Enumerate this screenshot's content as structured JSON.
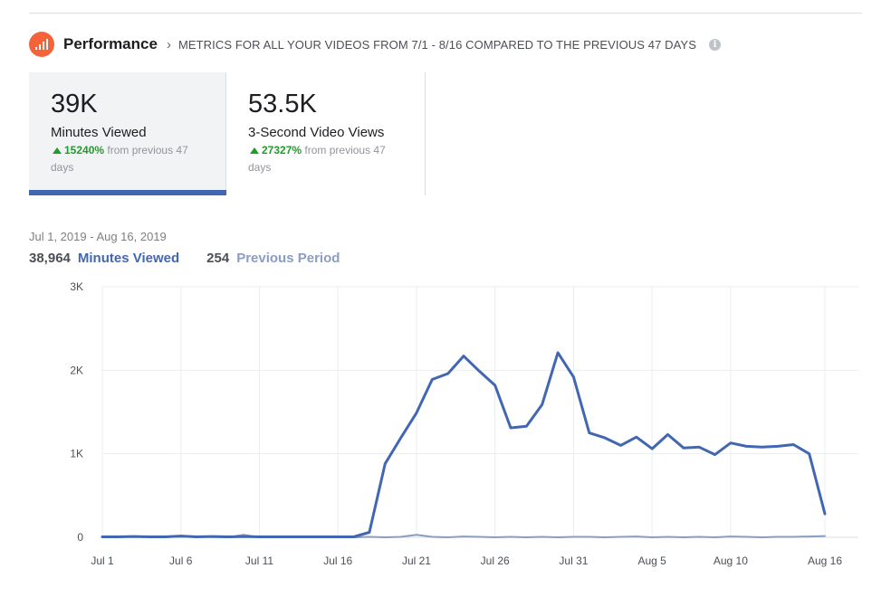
{
  "header": {
    "title": "Performance",
    "chevron": "›",
    "subtitle": "METRICS FOR ALL YOUR VIDEOS FROM 7/1 - 8/16 COMPARED TO THE PREVIOUS 47 DAYS",
    "icon": "bar-chart-icon",
    "info_icon": "info-icon",
    "info_glyph": "i"
  },
  "metrics": [
    {
      "value": "39K",
      "label": "Minutes Viewed",
      "change_pct": "15240%",
      "change_text": "from previous 47 days",
      "selected": true
    },
    {
      "value": "53.5K",
      "label": "3-Second Video Views",
      "change_pct": "27327%",
      "change_text": "from previous 47 days",
      "selected": false
    }
  ],
  "colors": {
    "accent": "#4267b2",
    "previous_series": "#8b9dc3",
    "positive": "#1e9e28",
    "icon_bg": "#f5633a"
  },
  "chart_data": {
    "type": "line",
    "date_range": "Jul 1, 2019 - Aug 16, 2019",
    "x": [
      "Jul 1",
      "Jul 2",
      "Jul 3",
      "Jul 4",
      "Jul 5",
      "Jul 6",
      "Jul 7",
      "Jul 8",
      "Jul 9",
      "Jul 10",
      "Jul 11",
      "Jul 12",
      "Jul 13",
      "Jul 14",
      "Jul 15",
      "Jul 16",
      "Jul 17",
      "Jul 18",
      "Jul 19",
      "Jul 20",
      "Jul 21",
      "Jul 22",
      "Jul 23",
      "Jul 24",
      "Jul 25",
      "Jul 26",
      "Jul 27",
      "Jul 28",
      "Jul 29",
      "Jul 30",
      "Jul 31",
      "Aug 1",
      "Aug 2",
      "Aug 3",
      "Aug 4",
      "Aug 5",
      "Aug 6",
      "Aug 7",
      "Aug 8",
      "Aug 9",
      "Aug 10",
      "Aug 11",
      "Aug 12",
      "Aug 13",
      "Aug 14",
      "Aug 15",
      "Aug 16"
    ],
    "x_ticks": [
      "Jul 1",
      "Jul 6",
      "Jul 11",
      "Jul 16",
      "Jul 21",
      "Jul 26",
      "Jul 31",
      "Aug 5",
      "Aug 10",
      "Aug 16"
    ],
    "y_ticks": [
      0,
      1000,
      2000,
      3000
    ],
    "y_tick_labels": [
      "0",
      "1K",
      "2K",
      "3K"
    ],
    "ylim": [
      0,
      3000
    ],
    "grid": true,
    "series": [
      {
        "name": "Minutes Viewed",
        "total": "38,964",
        "color": "#4267b2",
        "values": [
          5,
          5,
          10,
          5,
          5,
          15,
          5,
          10,
          5,
          10,
          5,
          5,
          5,
          5,
          5,
          5,
          5,
          60,
          880,
          1190,
          1490,
          1890,
          1960,
          2170,
          1990,
          1820,
          1310,
          1330,
          1590,
          2210,
          1920,
          1250,
          1190,
          1100,
          1200,
          1060,
          1230,
          1070,
          1080,
          990,
          1130,
          1090,
          1080,
          1090,
          1110,
          1000,
          280
        ]
      },
      {
        "name": "Previous Period",
        "total": "254",
        "color": "#8b9dc3",
        "values": [
          0,
          5,
          10,
          5,
          10,
          5,
          10,
          5,
          0,
          30,
          0,
          5,
          0,
          5,
          0,
          5,
          0,
          5,
          0,
          5,
          30,
          5,
          0,
          10,
          5,
          0,
          5,
          0,
          5,
          0,
          5,
          5,
          0,
          5,
          10,
          0,
          5,
          0,
          5,
          0,
          10,
          5,
          0,
          5,
          5,
          10,
          15
        ]
      }
    ]
  }
}
